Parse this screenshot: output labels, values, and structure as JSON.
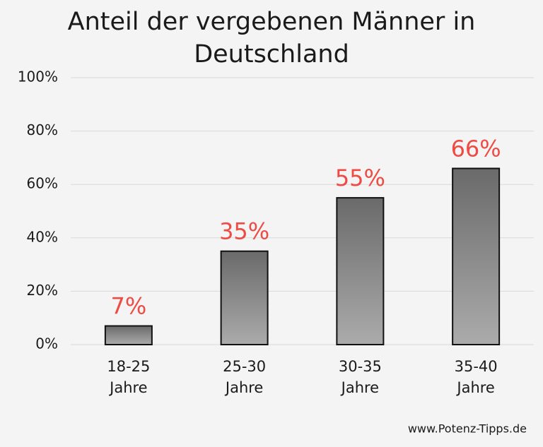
{
  "chart_data": {
    "type": "bar",
    "title": "Anteil der vergebenen Männer in Deutschland",
    "categories": [
      "18-25 Jahre",
      "25-30 Jahre",
      "30-35 Jahre",
      "35-40 Jahre"
    ],
    "values": [
      7,
      35,
      55,
      66
    ],
    "value_labels": [
      "7%",
      "35%",
      "55%",
      "66%"
    ],
    "ylim": [
      0,
      100
    ],
    "yticks": [
      {
        "value": 0,
        "label": "0%"
      },
      {
        "value": 20,
        "label": "20%"
      },
      {
        "value": 40,
        "label": "40%"
      },
      {
        "value": 60,
        "label": "60%"
      },
      {
        "value": 80,
        "label": "80%"
      },
      {
        "value": 100,
        "label": "100%"
      }
    ],
    "grid": true,
    "source": "www.Potenz-Tipps.de"
  }
}
